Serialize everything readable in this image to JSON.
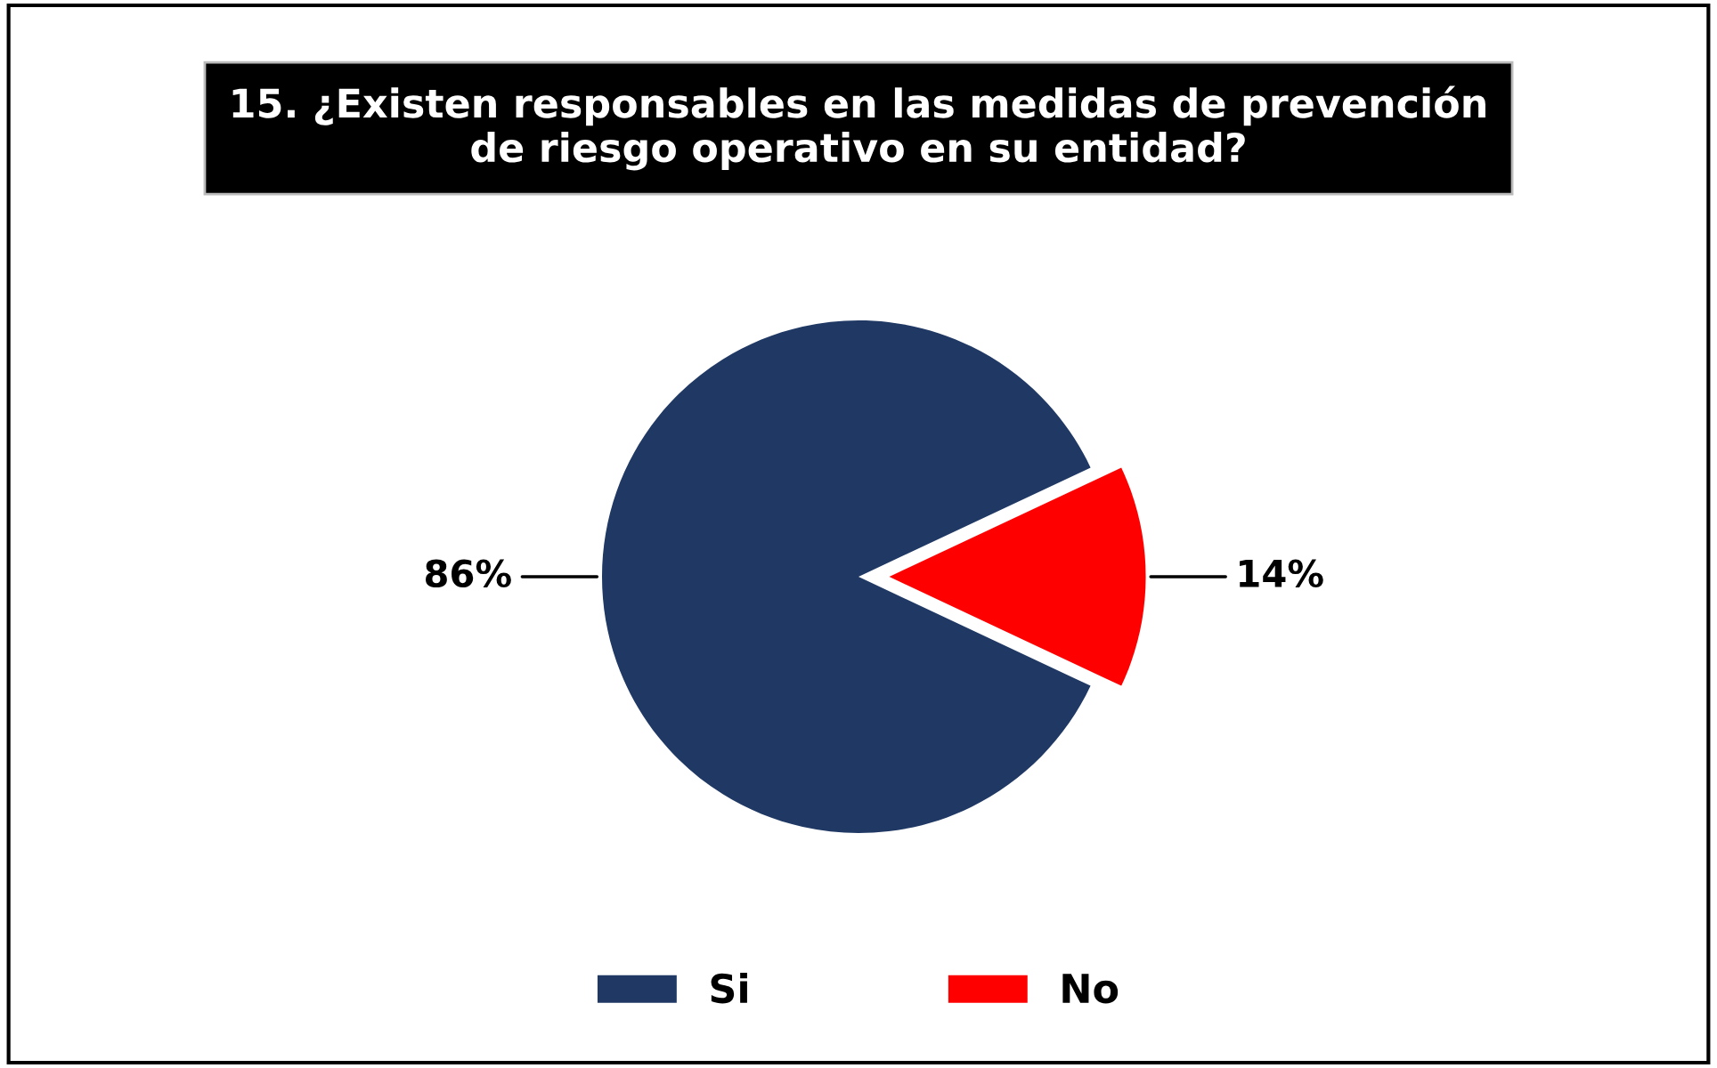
{
  "chart_data": {
    "type": "pie",
    "title": "15. ¿Existen responsables en las medidas de prevención de riesgo operativo en su entidad?",
    "categories": [
      "Si",
      "No"
    ],
    "values": [
      86,
      14
    ],
    "colors": [
      "#1f3864",
      "#ff0000"
    ],
    "value_labels": [
      "86%",
      "14%"
    ],
    "legend": "bottom"
  }
}
